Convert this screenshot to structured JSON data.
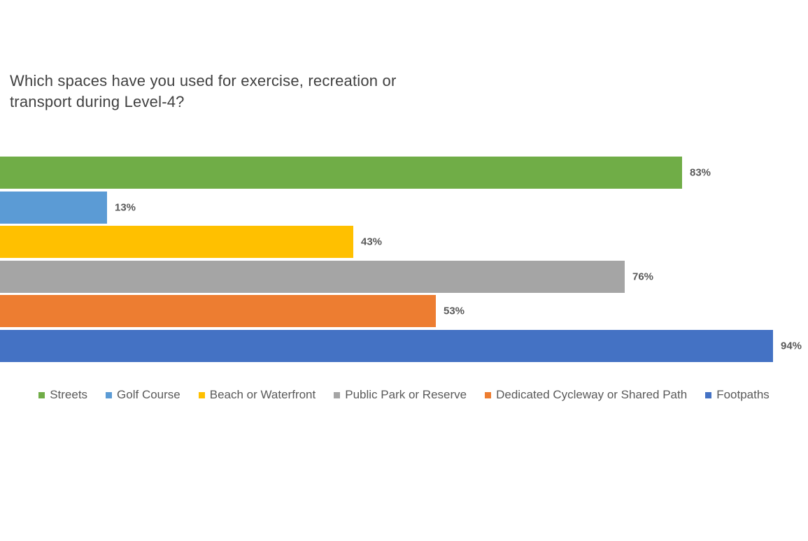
{
  "chart_data": {
    "type": "bar",
    "orientation": "horizontal",
    "title": "Which spaces have you used for exercise, recreation or\ntransport during Level-4?",
    "categories": [
      "Streets",
      "Golf Course",
      "Beach or Waterfront",
      "Public Park or Reserve",
      "Dedicated Cycleway or Shared Path",
      "Footpaths"
    ],
    "values": [
      83,
      13,
      43,
      76,
      53,
      94
    ],
    "value_suffix": "%",
    "colors": [
      "#70AD47",
      "#5B9BD5",
      "#FFC000",
      "#A5A5A5",
      "#ED7D31",
      "#4472C4"
    ],
    "xlim": [
      0,
      100
    ],
    "data_labels": true,
    "grid": false,
    "legend_position": "bottom",
    "title_color": "#404040",
    "label_color": "#595959",
    "background_color": "#FFFFFF"
  }
}
